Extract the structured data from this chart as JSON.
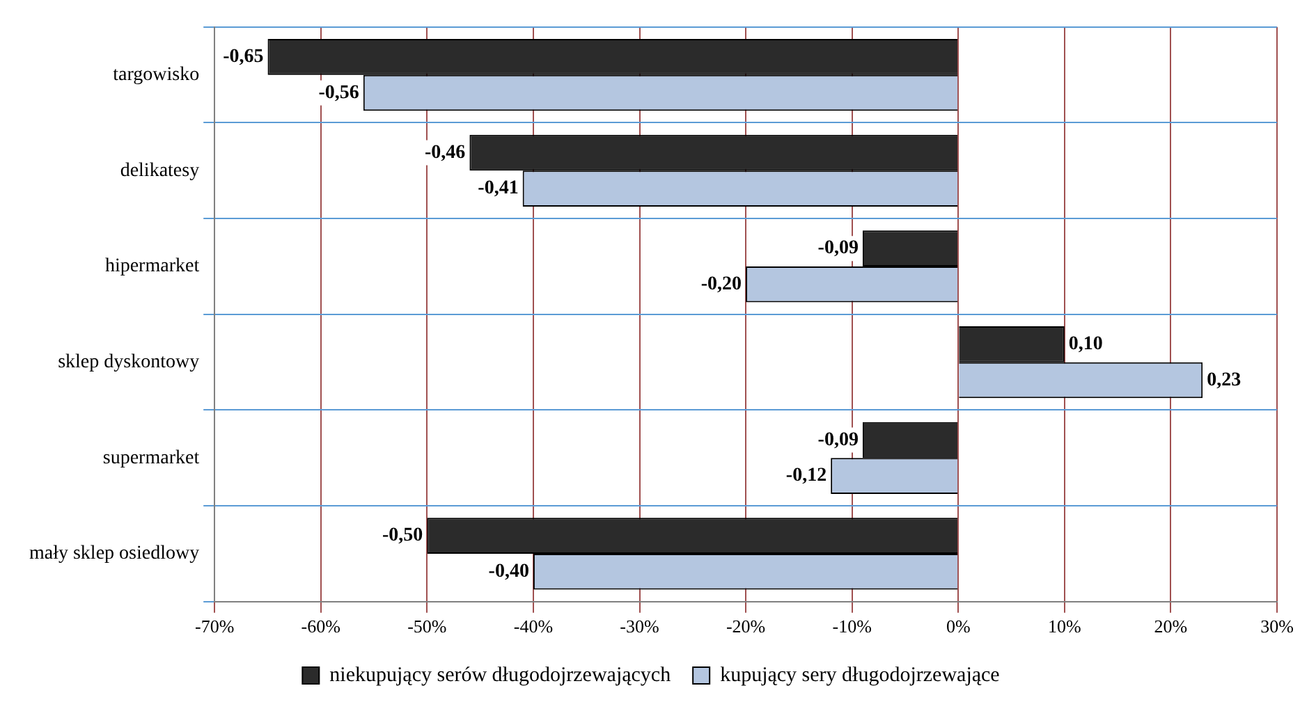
{
  "chart_data": {
    "type": "bar",
    "orientation": "horizontal",
    "categories": [
      "targowisko",
      "delikatesy",
      "hipermarket",
      "sklep dyskontowy",
      "supermarket",
      "mały sklep osiedlowy"
    ],
    "series": [
      {
        "name": "niekupujący serów długodojrzewających",
        "color": "#2b2b2b",
        "values": [
          -0.65,
          -0.46,
          -0.09,
          0.1,
          -0.09,
          -0.5
        ],
        "value_labels": [
          "-0,65",
          "-0,46",
          "-0,09",
          "0,10",
          "-0,09",
          "-0,50"
        ]
      },
      {
        "name": "kupujący sery długodojrzewające",
        "color": "#b4c6e0",
        "values": [
          -0.56,
          -0.41,
          -0.2,
          0.23,
          -0.12,
          -0.4
        ],
        "value_labels": [
          "-0,56",
          "-0,41",
          "-0,20",
          "0,23",
          "-0,12",
          "-0,40"
        ]
      }
    ],
    "xlim": [
      -0.7,
      0.3
    ],
    "xticks": [
      {
        "value": -0.7,
        "label": "-70%"
      },
      {
        "value": -0.6,
        "label": "-60%"
      },
      {
        "value": -0.5,
        "label": "-50%"
      },
      {
        "value": -0.4,
        "label": "-40%"
      },
      {
        "value": -0.3,
        "label": "-30%"
      },
      {
        "value": -0.2,
        "label": "-20%"
      },
      {
        "value": -0.1,
        "label": "-10%"
      },
      {
        "value": 0,
        "label": "0%"
      },
      {
        "value": 0.1,
        "label": "10%"
      },
      {
        "value": 0.2,
        "label": "20%"
      },
      {
        "value": 0.3,
        "label": "30%"
      }
    ],
    "grid": true,
    "legend": "bottom"
  }
}
